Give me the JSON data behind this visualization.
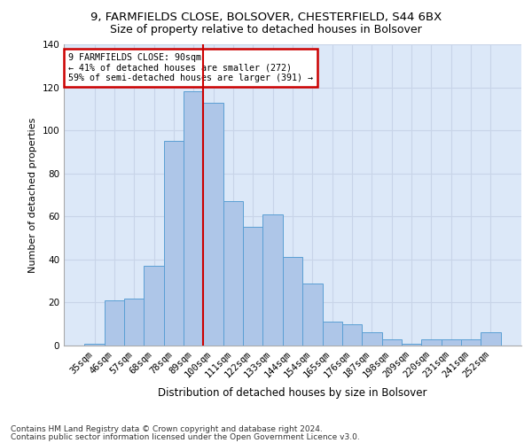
{
  "title1": "9, FARMFIELDS CLOSE, BOLSOVER, CHESTERFIELD, S44 6BX",
  "title2": "Size of property relative to detached houses in Bolsover",
  "xlabel": "Distribution of detached houses by size in Bolsover",
  "ylabel": "Number of detached properties",
  "categories": [
    "35sqm",
    "46sqm",
    "57sqm",
    "68sqm",
    "78sqm",
    "89sqm",
    "100sqm",
    "111sqm",
    "122sqm",
    "133sqm",
    "144sqm",
    "154sqm",
    "165sqm",
    "176sqm",
    "187sqm",
    "198sqm",
    "209sqm",
    "220sqm",
    "231sqm",
    "241sqm",
    "252sqm"
  ],
  "values": [
    1,
    21,
    22,
    37,
    95,
    118,
    113,
    67,
    55,
    61,
    41,
    29,
    11,
    10,
    6,
    3,
    1,
    3,
    3,
    3,
    6
  ],
  "bar_color": "#aec6e8",
  "bar_edge_color": "#5a9fd4",
  "vline_index": 5,
  "vline_color": "#cc0000",
  "annotation_text": "9 FARMFIELDS CLOSE: 90sqm\n← 41% of detached houses are smaller (272)\n59% of semi-detached houses are larger (391) →",
  "annotation_box_color": "#ffffff",
  "annotation_box_edge": "#cc0000",
  "ylim": [
    0,
    140
  ],
  "yticks": [
    0,
    20,
    40,
    60,
    80,
    100,
    120,
    140
  ],
  "grid_color": "#c8d4e8",
  "bg_color": "#dce8f8",
  "footer1": "Contains HM Land Registry data © Crown copyright and database right 2024.",
  "footer2": "Contains public sector information licensed under the Open Government Licence v3.0.",
  "title1_fontsize": 9.5,
  "title2_fontsize": 9,
  "xlabel_fontsize": 8.5,
  "ylabel_fontsize": 8,
  "tick_fontsize": 7.5,
  "footer_fontsize": 6.5
}
